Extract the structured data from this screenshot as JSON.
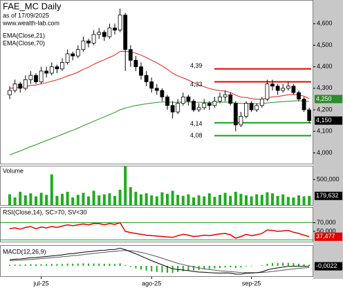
{
  "chart_data": [
    {
      "type": "candlestick",
      "title": "FAE_MC Daily",
      "subtitle": "as of 17/09/2025",
      "source": "www.wealth-lab.com",
      "ylim": [
        3.95,
        4.71
      ],
      "yticks": [
        {
          "value": 4.0,
          "label": "4,000"
        },
        {
          "value": 4.1,
          "label": "4,100"
        },
        {
          "value": 4.2,
          "label": "4,200"
        },
        {
          "value": 4.3,
          "label": "4,300"
        },
        {
          "value": 4.4,
          "label": "4,400"
        },
        {
          "value": 4.5,
          "label": "4,500"
        },
        {
          "value": 4.6,
          "label": "4,600"
        }
      ],
      "xticks": [
        {
          "value": 6,
          "label": "jul-25"
        },
        {
          "value": 27,
          "label": "ago-25"
        },
        {
          "value": 46,
          "label": "sep-25"
        }
      ],
      "up_color": "#ffffff",
      "down_color": "#000000",
      "ohlc": [
        [
          4.27,
          4.31,
          4.25,
          4.29
        ],
        [
          4.29,
          4.34,
          4.28,
          4.32
        ],
        [
          4.32,
          4.33,
          4.28,
          4.3
        ],
        [
          4.3,
          4.36,
          4.29,
          4.34
        ],
        [
          4.34,
          4.38,
          4.32,
          4.36
        ],
        [
          4.36,
          4.37,
          4.32,
          4.33
        ],
        [
          4.33,
          4.4,
          4.32,
          4.38
        ],
        [
          4.38,
          4.4,
          4.35,
          4.37
        ],
        [
          4.37,
          4.42,
          4.36,
          4.4
        ],
        [
          4.4,
          4.41,
          4.37,
          4.39
        ],
        [
          4.39,
          4.44,
          4.38,
          4.42
        ],
        [
          4.42,
          4.48,
          4.41,
          4.46
        ],
        [
          4.46,
          4.47,
          4.43,
          4.45
        ],
        [
          4.45,
          4.5,
          4.44,
          4.48
        ],
        [
          4.48,
          4.54,
          4.47,
          4.52
        ],
        [
          4.52,
          4.53,
          4.49,
          4.51
        ],
        [
          4.51,
          4.57,
          4.5,
          4.55
        ],
        [
          4.55,
          4.58,
          4.53,
          4.56
        ],
        [
          4.56,
          4.57,
          4.52,
          4.54
        ],
        [
          4.54,
          4.6,
          4.53,
          4.58
        ],
        [
          4.58,
          4.6,
          4.55,
          4.57
        ],
        [
          4.57,
          4.67,
          4.56,
          4.64
        ],
        [
          4.64,
          4.65,
          4.38,
          4.48
        ],
        [
          4.48,
          4.5,
          4.4,
          4.43
        ],
        [
          4.43,
          4.45,
          4.38,
          4.4
        ],
        [
          4.4,
          4.42,
          4.34,
          4.36
        ],
        [
          4.36,
          4.38,
          4.31,
          4.33
        ],
        [
          4.33,
          4.35,
          4.28,
          4.3
        ],
        [
          4.3,
          4.32,
          4.27,
          4.29
        ],
        [
          4.29,
          4.3,
          4.24,
          4.26
        ],
        [
          4.26,
          4.27,
          4.2,
          4.22
        ],
        [
          4.22,
          4.24,
          4.16,
          4.19
        ],
        [
          4.19,
          4.25,
          4.18,
          4.23
        ],
        [
          4.23,
          4.28,
          4.22,
          4.26
        ],
        [
          4.26,
          4.27,
          4.22,
          4.24
        ],
        [
          4.24,
          4.25,
          4.19,
          4.2
        ],
        [
          4.2,
          4.23,
          4.19,
          4.21
        ],
        [
          4.21,
          4.25,
          4.2,
          4.23
        ],
        [
          4.23,
          4.24,
          4.2,
          4.22
        ],
        [
          4.22,
          4.26,
          4.21,
          4.24
        ],
        [
          4.24,
          4.28,
          4.23,
          4.26
        ],
        [
          4.26,
          4.29,
          4.24,
          4.27
        ],
        [
          4.27,
          4.28,
          4.22,
          4.23
        ],
        [
          4.23,
          4.24,
          4.1,
          4.13
        ],
        [
          4.13,
          4.19,
          4.12,
          4.17
        ],
        [
          4.17,
          4.24,
          4.16,
          4.23
        ],
        [
          4.23,
          4.24,
          4.19,
          4.2
        ],
        [
          4.2,
          4.23,
          4.19,
          4.22
        ],
        [
          4.22,
          4.26,
          4.21,
          4.25
        ],
        [
          4.25,
          4.34,
          4.24,
          4.32
        ],
        [
          4.32,
          4.34,
          4.29,
          4.31
        ],
        [
          4.31,
          4.32,
          4.27,
          4.29
        ],
        [
          4.29,
          4.32,
          4.28,
          4.3
        ],
        [
          4.3,
          4.33,
          4.29,
          4.31
        ],
        [
          4.31,
          4.32,
          4.27,
          4.28
        ],
        [
          4.28,
          4.29,
          4.24,
          4.25
        ],
        [
          4.25,
          4.26,
          4.19,
          4.2
        ],
        [
          4.2,
          4.21,
          4.14,
          4.15
        ]
      ],
      "series": [
        {
          "name": "EMA(Close,21)",
          "color": "#d42020",
          "values": [
            4.3,
            4.302,
            4.304,
            4.308,
            4.313,
            4.315,
            4.321,
            4.326,
            4.333,
            4.339,
            4.347,
            4.357,
            4.365,
            4.375,
            4.388,
            4.398,
            4.411,
            4.423,
            4.432,
            4.444,
            4.454,
            4.471,
            4.472,
            4.469,
            4.463,
            4.454,
            4.443,
            4.43,
            4.418,
            4.404,
            4.388,
            4.37,
            4.357,
            4.348,
            4.338,
            4.326,
            4.315,
            4.307,
            4.299,
            4.293,
            4.289,
            4.287,
            4.281,
            4.268,
            4.259,
            4.257,
            4.252,
            4.249,
            4.249,
            4.255,
            4.26,
            4.262,
            4.266,
            4.27,
            4.271,
            4.27,
            4.263,
            4.252
          ]
        },
        {
          "name": "EMA(Close,70)",
          "color": "#2e8b2e",
          "values": [
            3.99,
            4.0,
            4.009,
            4.019,
            4.029,
            4.038,
            4.048,
            4.057,
            4.067,
            4.076,
            4.086,
            4.096,
            4.105,
            4.115,
            4.126,
            4.136,
            4.147,
            4.157,
            4.167,
            4.178,
            4.188,
            4.2,
            4.208,
            4.214,
            4.22,
            4.224,
            4.228,
            4.231,
            4.234,
            4.236,
            4.236,
            4.235,
            4.235,
            4.236,
            4.236,
            4.235,
            4.235,
            4.235,
            4.234,
            4.234,
            4.235,
            4.236,
            4.235,
            4.232,
            4.23,
            4.23,
            4.229,
            4.229,
            4.229,
            4.232,
            4.234,
            4.236,
            4.238,
            4.24,
            4.241,
            4.242,
            4.241,
            4.239
          ]
        }
      ],
      "levels": [
        {
          "value": 4.39,
          "label": "4,39",
          "color": "#e00000"
        },
        {
          "value": 4.33,
          "label": "4,33",
          "color": "#e00000"
        },
        {
          "value": 4.14,
          "label": "4,14",
          "color": "#1a9a1a"
        },
        {
          "value": 4.08,
          "label": "4,08",
          "color": "#1a9a1a"
        }
      ],
      "last_labels": [
        {
          "value": 4.25,
          "label": "4,250",
          "color": "#2e8b2e"
        },
        {
          "value": 4.15,
          "label": "4,150",
          "color": "#000000"
        }
      ]
    },
    {
      "type": "bar",
      "title": "Volume",
      "color": "#22aa22",
      "ylim": [
        0,
        770000
      ],
      "yticks": [
        {
          "value": 500000,
          "label": "500,000"
        }
      ],
      "values": [
        210000,
        150000,
        260000,
        190000,
        230000,
        170000,
        240000,
        200000,
        600000,
        180000,
        220000,
        260000,
        150000,
        200000,
        240000,
        170000,
        280000,
        190000,
        210000,
        230000,
        180000,
        300000,
        760000,
        350000,
        260000,
        210000,
        230000,
        190000,
        170000,
        250000,
        220000,
        280000,
        200000,
        180000,
        210000,
        150000,
        190000,
        170000,
        230000,
        160000,
        200000,
        240000,
        180000,
        260000,
        220000,
        190000,
        170000,
        210000,
        200000,
        250000,
        230000,
        180000,
        210000,
        160000,
        150000,
        190000,
        170000,
        179632
      ],
      "last_labels": [
        {
          "value": 179632,
          "label": "179,632",
          "color": "#000000"
        }
      ]
    },
    {
      "type": "line",
      "title": "RSI(Close,14), SC>70, SV<30",
      "color": "#e00000",
      "ylim": [
        26,
        106
      ],
      "yticks": [
        {
          "value": 70,
          "label": "70,000"
        },
        {
          "value": 50,
          "label": "50,000"
        }
      ],
      "thresholds": [
        70,
        30
      ],
      "threshold_color": "#1a9a1a",
      "values": [
        56,
        58,
        55,
        59,
        61,
        56,
        60,
        58,
        61,
        59,
        62,
        65,
        63,
        65,
        67,
        65,
        68,
        68,
        65,
        68,
        66,
        70,
        50,
        47,
        45,
        43,
        41,
        40,
        39,
        38,
        37,
        36,
        40,
        43,
        41,
        38,
        39,
        41,
        40,
        42,
        44,
        45,
        42,
        34,
        38,
        43,
        40,
        42,
        45,
        53,
        52,
        50,
        51,
        52,
        48,
        45,
        41,
        37.477
      ],
      "last_labels": [
        {
          "value": 37.477,
          "label": "37,477",
          "color": "#e00000"
        }
      ]
    },
    {
      "type": "macd",
      "title": "MACD(12,26,9)",
      "ylim": [
        -0.05,
        0.1
      ],
      "line_color": "#000000",
      "signal_color": "#555555",
      "hist_color": "#22aa22",
      "macd": [
        0.03,
        0.032,
        0.033,
        0.036,
        0.039,
        0.04,
        0.043,
        0.045,
        0.048,
        0.05,
        0.053,
        0.057,
        0.059,
        0.062,
        0.066,
        0.068,
        0.071,
        0.074,
        0.075,
        0.078,
        0.079,
        0.085,
        0.078,
        0.068,
        0.058,
        0.047,
        0.036,
        0.025,
        0.015,
        0.005,
        -0.005,
        -0.014,
        -0.018,
        -0.02,
        -0.023,
        -0.027,
        -0.03,
        -0.031,
        -0.033,
        -0.034,
        -0.035,
        -0.034,
        -0.035,
        -0.04,
        -0.04,
        -0.036,
        -0.035,
        -0.033,
        -0.029,
        -0.02,
        -0.014,
        -0.01,
        -0.006,
        -0.003,
        -0.002,
        -0.002,
        -0.002,
        -0.0022
      ],
      "signal": [
        0.025,
        0.026,
        0.027,
        0.029,
        0.031,
        0.033,
        0.035,
        0.037,
        0.039,
        0.041,
        0.044,
        0.046,
        0.049,
        0.051,
        0.054,
        0.057,
        0.06,
        0.063,
        0.065,
        0.068,
        0.07,
        0.073,
        0.074,
        0.073,
        0.07,
        0.065,
        0.059,
        0.052,
        0.045,
        0.037,
        0.028,
        0.02,
        0.012,
        0.006,
        0.0,
        -0.005,
        -0.01,
        -0.014,
        -0.018,
        -0.021,
        -0.024,
        -0.026,
        -0.028,
        -0.03,
        -0.032,
        -0.033,
        -0.033,
        -0.033,
        -0.032,
        -0.03,
        -0.027,
        -0.024,
        -0.021,
        -0.018,
        -0.015,
        -0.012,
        -0.01,
        -0.008
      ],
      "histogram": [
        0.005,
        0.006,
        0.006,
        0.007,
        0.008,
        0.007,
        0.008,
        0.008,
        0.009,
        0.009,
        0.009,
        0.011,
        0.01,
        0.011,
        0.012,
        0.011,
        0.011,
        0.011,
        0.01,
        0.01,
        0.009,
        0.012,
        0.004,
        -0.005,
        -0.012,
        -0.018,
        -0.023,
        -0.027,
        -0.03,
        -0.032,
        -0.033,
        -0.034,
        -0.03,
        -0.026,
        -0.023,
        -0.022,
        -0.02,
        -0.017,
        -0.015,
        -0.013,
        -0.011,
        -0.008,
        -0.007,
        -0.01,
        -0.008,
        -0.003,
        -0.002,
        0,
        0.003,
        0.01,
        0.013,
        0.014,
        0.015,
        0.015,
        0.013,
        0.01,
        0.008,
        0.0058
      ],
      "last_labels": [
        {
          "value": -0.0022,
          "label": "-0,0022",
          "color": "#000000"
        }
      ]
    }
  ]
}
